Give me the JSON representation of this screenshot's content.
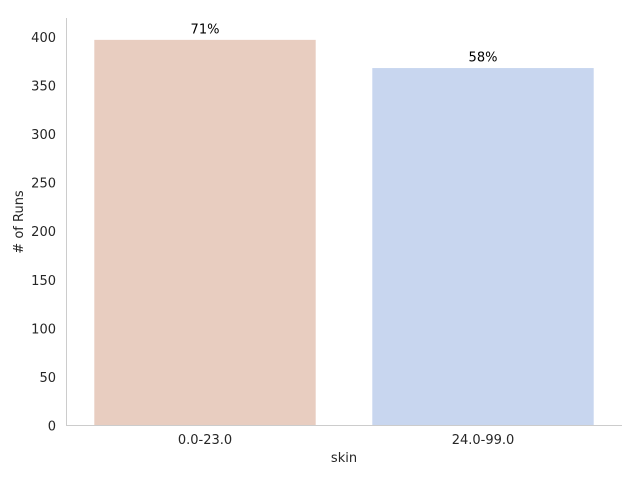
{
  "chart_data": {
    "type": "bar",
    "categories": [
      "0.0-23.0",
      "24.0-99.0"
    ],
    "values": [
      398,
      369
    ],
    "data_labels": [
      "71%",
      "58%"
    ],
    "colors": [
      "#e8cdc0",
      "#c8d6ef"
    ],
    "xlabel": "skin",
    "ylabel": "# of Runs",
    "ylim": [
      0,
      420
    ],
    "yticks": [
      0,
      50,
      100,
      150,
      200,
      250,
      300,
      350,
      400
    ],
    "grid": false,
    "legend": "none"
  }
}
